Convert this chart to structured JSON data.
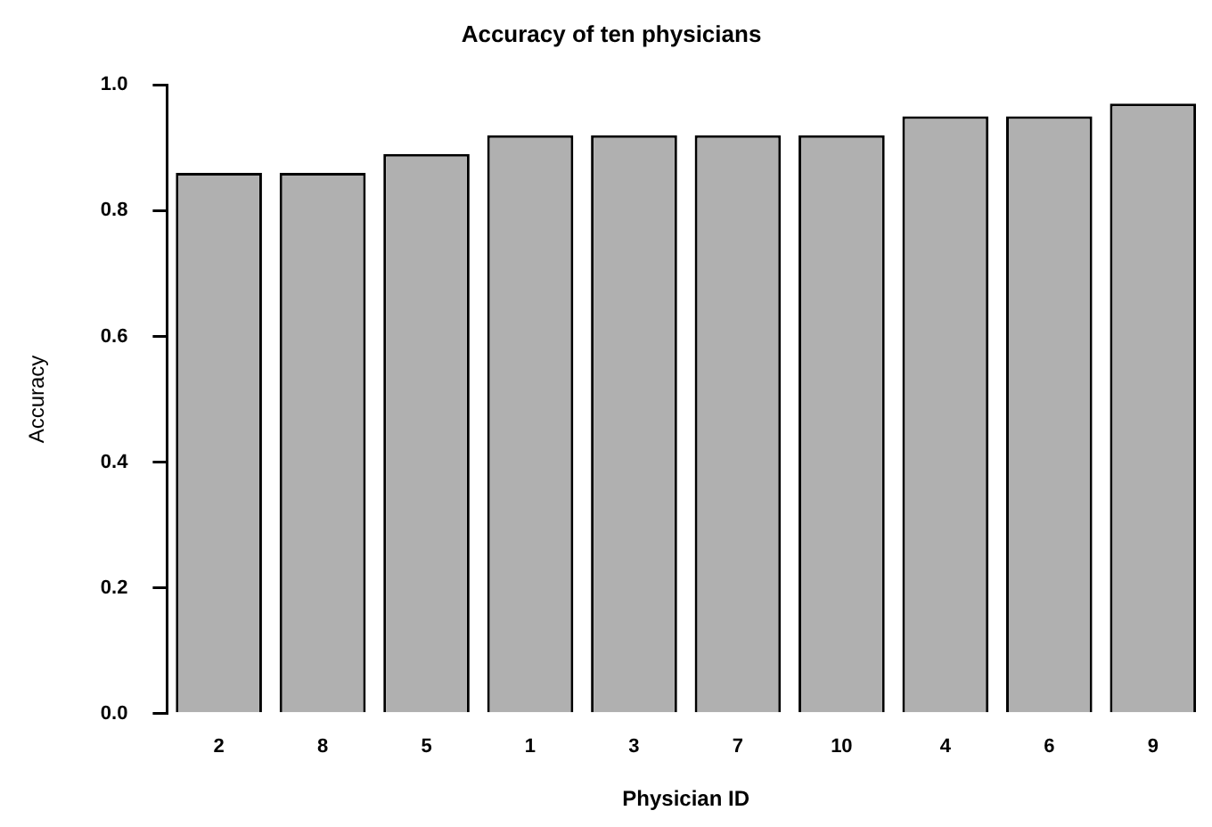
{
  "chart_data": {
    "type": "bar",
    "title": "Accuracy of ten physicians",
    "xlabel": "Physician ID",
    "ylabel": "Accuracy",
    "categories": [
      "2",
      "8",
      "5",
      "1",
      "3",
      "7",
      "10",
      "4",
      "6",
      "9"
    ],
    "values": [
      0.86,
      0.86,
      0.89,
      0.92,
      0.92,
      0.92,
      0.92,
      0.95,
      0.95,
      0.97
    ],
    "color": "#b0b0b0",
    "ylim": [
      0,
      1
    ],
    "yticks": [
      {
        "value": 0,
        "label": "0.0"
      },
      {
        "value": 0.2,
        "label": "0.2"
      },
      {
        "value": 0.4,
        "label": "0.4"
      },
      {
        "value": 0.6,
        "label": "0.6"
      },
      {
        "value": 0.8,
        "label": "0.8"
      },
      {
        "value": 1,
        "label": "1.0"
      }
    ]
  }
}
